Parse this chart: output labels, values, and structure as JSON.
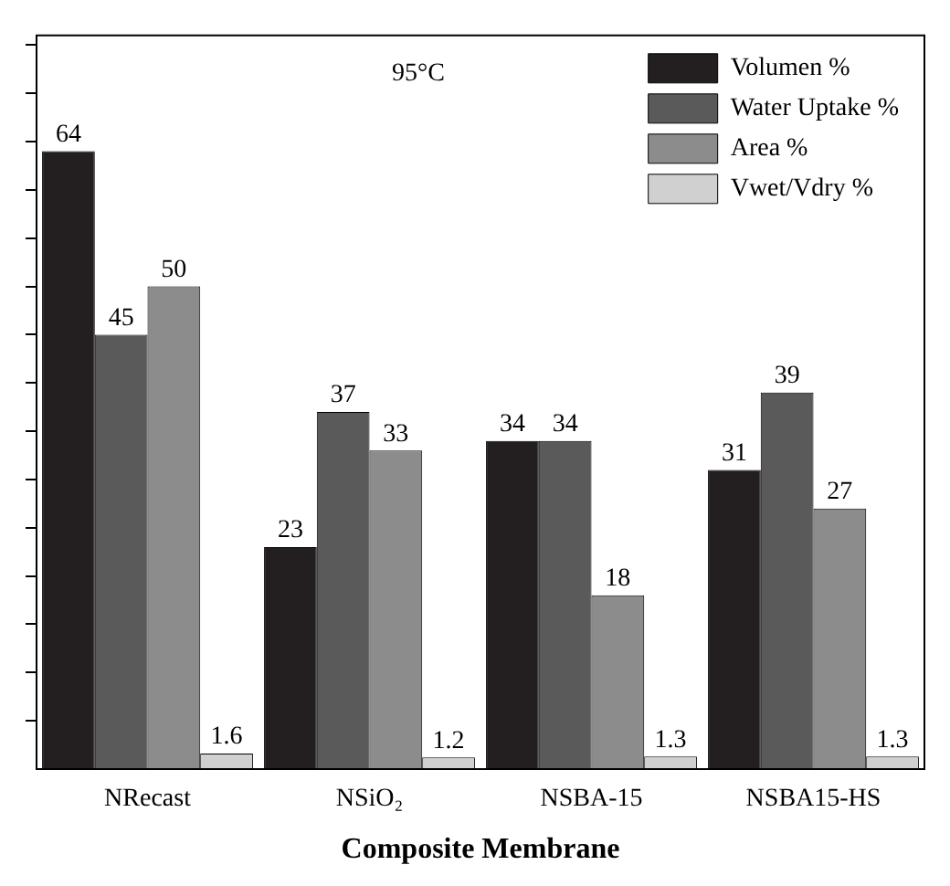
{
  "chart_data": {
    "type": "bar",
    "xlabel": "Composite Membrane",
    "annotations": [
      "95°C"
    ],
    "categories": [
      "NRecast",
      "NSiO₂",
      "NSBA-15",
      "NSBA15-HS"
    ],
    "series": [
      {
        "name": "Volumen %",
        "color": "#231f20",
        "values": [
          64,
          23,
          34,
          31
        ]
      },
      {
        "name": "Water Uptake %",
        "color": "#5a5a5a",
        "values": [
          45,
          37,
          34,
          39
        ]
      },
      {
        "name": "Area %",
        "color": "#8c8c8c",
        "values": [
          50,
          33,
          18,
          27
        ]
      },
      {
        "name": "Vwet/Vdry %",
        "color": "#d0d0d0",
        "values": [
          1.6,
          1.2,
          1.3,
          1.3
        ]
      }
    ],
    "ylim": [
      0,
      76
    ],
    "yticks": [
      {
        "value": 5,
        "label": null
      },
      {
        "value": 10,
        "label": null
      },
      {
        "value": 15,
        "label": null
      },
      {
        "value": 20,
        "label": null
      },
      {
        "value": 25,
        "label": null
      },
      {
        "value": 30,
        "label": null
      },
      {
        "value": 35,
        "label": null
      },
      {
        "value": 40,
        "label": null
      },
      {
        "value": 45,
        "label": null
      },
      {
        "value": 50,
        "label": null
      },
      {
        "value": 55,
        "label": null
      },
      {
        "value": 60,
        "label": null
      },
      {
        "value": 65,
        "label": null
      },
      {
        "value": 70,
        "label": null
      },
      {
        "value": 75,
        "label": null
      }
    ],
    "tick_labels": "x",
    "data_labels": true,
    "legend": "top right",
    "grid": false
  }
}
